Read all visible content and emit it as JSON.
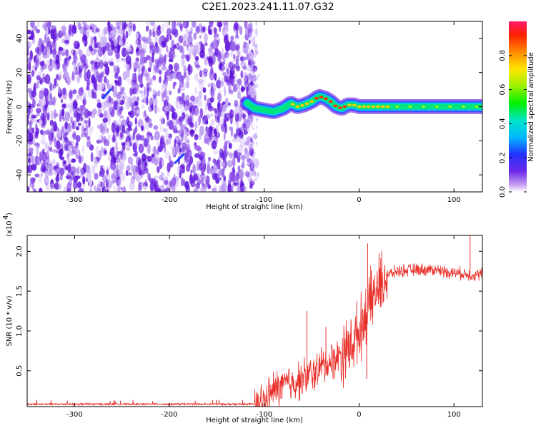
{
  "title": "C2E1.2023.241.11.07.G32",
  "colors": {
    "snr_line": "#e8302a",
    "noise_violet": "#7a20e0",
    "background": "#ffffff"
  },
  "chart_data": [
    {
      "type": "heatmap",
      "title": "C2E1.2023.241.11.07.G32",
      "xlabel": "Height of straight line (km)",
      "ylabel": "Frequency (Hz)",
      "xlim": [
        -350,
        130
      ],
      "ylim": [
        -50,
        50
      ],
      "xticks": [
        -300,
        -200,
        -100,
        0,
        100
      ],
      "yticks": [
        -40,
        -20,
        0,
        20,
        40
      ],
      "grid": false,
      "colorbar": {
        "label": "Normalized spectral amplitude",
        "range": [
          0.0,
          1.0
        ],
        "ticks": [
          "0.0",
          "0.2",
          "0.4",
          "0.6",
          "0.8"
        ],
        "colormap": "rainbow"
      },
      "noise_region": {
        "x_range": [
          -350,
          -108
        ],
        "y_range": [
          -50,
          50
        ]
      },
      "signal_trace": {
        "x": [
          -118,
          -110,
          -100,
          -90,
          -80,
          -72,
          -65,
          -58,
          -50,
          -42,
          -36,
          -30,
          -24,
          -18,
          -12,
          -6,
          0,
          10,
          30,
          60,
          90,
          130
        ],
        "y": [
          2,
          -1,
          -2,
          -3,
          -1,
          2,
          0,
          1,
          3,
          6,
          5,
          3,
          0,
          -1,
          1,
          1,
          0,
          0,
          0,
          0,
          0,
          0
        ]
      },
      "streak_features": [
        {
          "x": [
            -270,
            -262
          ],
          "y": [
            5,
            10
          ]
        },
        {
          "x": [
            -194,
            -185
          ],
          "y": [
            -33,
            -28
          ]
        }
      ]
    },
    {
      "type": "line",
      "xlabel": "Height of straight line (km)",
      "ylabel": "SNR (10 * v/v)",
      "exponent_label": "(x10",
      "exponent_power": "4",
      "xlim": [
        -350,
        130
      ],
      "ylim": [
        0.05,
        2.2
      ],
      "xticks": [
        -300,
        -200,
        -100,
        0,
        100
      ],
      "yticks": [
        "0.5",
        "1.0",
        "1.5",
        "2.0"
      ],
      "grid": false,
      "envelope": {
        "x": [
          -350,
          -300,
          -200,
          -110,
          -100,
          -90,
          -80,
          -70,
          -60,
          -50,
          -40,
          -30,
          -20,
          -10,
          -5,
          0,
          5,
          10,
          20,
          30,
          40,
          60,
          80,
          100,
          110,
          120,
          130
        ],
        "y": [
          0.08,
          0.08,
          0.08,
          0.08,
          0.1,
          0.25,
          0.32,
          0.35,
          0.4,
          0.45,
          0.55,
          0.62,
          0.7,
          0.8,
          0.9,
          1.0,
          1.15,
          1.3,
          1.55,
          1.7,
          1.75,
          1.77,
          1.77,
          1.73,
          1.72,
          1.7,
          1.72
        ]
      },
      "peaks": [
        {
          "x": 9,
          "y": 2.1
        },
        {
          "x": 117,
          "y": 2.2
        },
        {
          "x": -55,
          "y": 1.25
        },
        {
          "x": -35,
          "y": 1.05
        },
        {
          "x": 8,
          "y": 0.4
        }
      ]
    }
  ]
}
